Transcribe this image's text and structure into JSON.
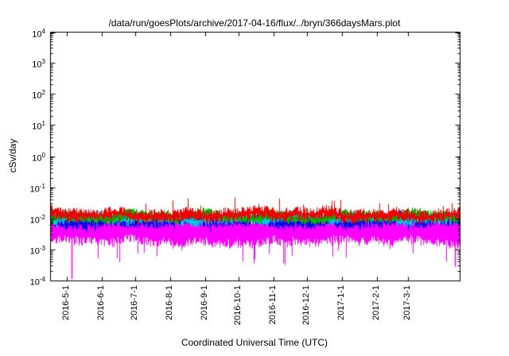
{
  "chart_data": {
    "type": "line",
    "title": "/data/run/goesPlots/archive/2017-04-16/flux/../bryn/366daysMars.plot",
    "xlabel": "Coordinated Universal Time (UTC)",
    "ylabel": "cSv/day",
    "background": "#ffffff",
    "axis_color": "#000000",
    "grid": false,
    "y_scale": "log",
    "ylim": [
      0.0001,
      10000
    ],
    "y_tick_exponents": [
      4,
      3,
      2,
      1,
      0,
      -1,
      -2,
      -3,
      -4
    ],
    "x_span_days": 365,
    "x_ticks": [
      {
        "label": "2016-5-1",
        "day": 15
      },
      {
        "label": "2016-6-1",
        "day": 46
      },
      {
        "label": "2016-7-1",
        "day": 76
      },
      {
        "label": "2016-8-1",
        "day": 107
      },
      {
        "label": "2016-9-1",
        "day": 138
      },
      {
        "label": "2016-10-1",
        "day": 168
      },
      {
        "label": "2016-11-1",
        "day": 199
      },
      {
        "label": "2016-12-1",
        "day": 229
      },
      {
        "label": "2017-1-1",
        "day": 260
      },
      {
        "label": "2017-2-1",
        "day": 291
      },
      {
        "label": "2017-3-1",
        "day": 319
      }
    ],
    "series": [
      {
        "name": "series-magenta",
        "color": "#ff00ff",
        "top_log10": -1.98,
        "bottom_log10": -2.72,
        "jitter": 0.14,
        "tail_down": 0.35
      },
      {
        "name": "series-blue",
        "color": "#0000ee",
        "top_log10": -1.92,
        "bottom_log10": -2.2,
        "jitter": 0.1,
        "tail_down": 0.08
      },
      {
        "name": "series-cyan",
        "color": "#00c8e8",
        "top_log10": -1.88,
        "bottom_log10": -2.1,
        "jitter": 0.09,
        "tail_down": 0.05
      },
      {
        "name": "series-green",
        "color": "#00b400",
        "top_log10": -1.84,
        "bottom_log10": -2.05,
        "jitter": 0.09,
        "tail_down": 0.05
      },
      {
        "name": "series-red",
        "color": "#ee0000",
        "top_log10": -1.76,
        "bottom_log10": -2.0,
        "jitter": 0.11,
        "tail_down": 0.05,
        "peaks_up": 0.25
      }
    ],
    "spikes": [
      {
        "x_fraction": 0.052,
        "from_log10": -2.3,
        "to_log10": -3.95,
        "color": "#ff00ff"
      },
      {
        "x_fraction": 0.988,
        "from_log10": -2.3,
        "to_log10": -3.55,
        "color": "#ff00ff"
      }
    ]
  }
}
